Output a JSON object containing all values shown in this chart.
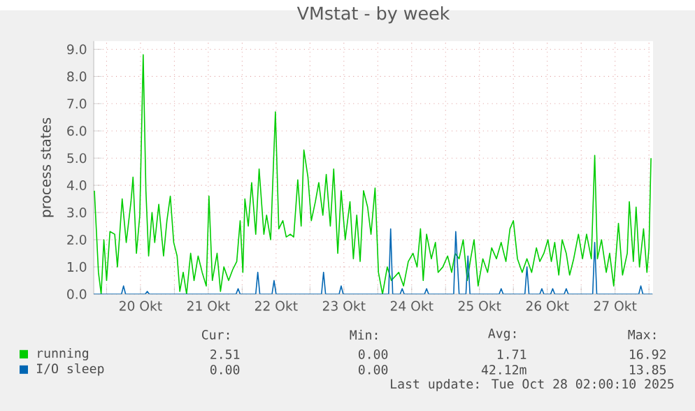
{
  "chart_data": {
    "type": "line",
    "title": "VMstat - by week",
    "ylabel": "process states",
    "xlim": [
      19.81,
      28.06
    ],
    "ylim": [
      0,
      9.3
    ],
    "xticks": [
      {
        "value": 20,
        "label": null
      },
      {
        "value": 20.5,
        "label": "20 Okt"
      },
      {
        "value": 21,
        "label": null
      },
      {
        "value": 21.5,
        "label": "21 Okt"
      },
      {
        "value": 22,
        "label": null
      },
      {
        "value": 22.5,
        "label": "22 Okt"
      },
      {
        "value": 23,
        "label": null
      },
      {
        "value": 23.5,
        "label": "23 Okt"
      },
      {
        "value": 24,
        "label": null
      },
      {
        "value": 24.5,
        "label": "24 Okt"
      },
      {
        "value": 25,
        "label": null
      },
      {
        "value": 25.5,
        "label": "25 Okt"
      },
      {
        "value": 26,
        "label": null
      },
      {
        "value": 26.5,
        "label": "26 Okt"
      },
      {
        "value": 27,
        "label": null
      },
      {
        "value": 27.5,
        "label": "27 Okt"
      },
      {
        "value": 28,
        "label": null
      }
    ],
    "yticks": [
      {
        "value": 0,
        "label": "0.0"
      },
      {
        "value": 1,
        "label": "1.0"
      },
      {
        "value": 2,
        "label": "2.0"
      },
      {
        "value": 3,
        "label": "3.0"
      },
      {
        "value": 4,
        "label": "4.0"
      },
      {
        "value": 5,
        "label": "5.0"
      },
      {
        "value": 6,
        "label": "6.0"
      },
      {
        "value": 7,
        "label": "7.0"
      },
      {
        "value": 8,
        "label": "8.0"
      },
      {
        "value": 9,
        "label": "9.0"
      }
    ],
    "grid": true,
    "legend": "bottom",
    "series": [
      {
        "name": "running",
        "color": "#00cc00",
        "x": [
          19.82,
          19.88,
          19.92,
          19.96,
          20.0,
          20.05,
          20.12,
          20.16,
          20.23,
          20.29,
          20.36,
          20.39,
          20.44,
          20.49,
          20.54,
          20.58,
          20.62,
          20.67,
          20.71,
          20.77,
          20.84,
          20.89,
          20.94,
          20.99,
          21.04,
          21.08,
          21.13,
          21.18,
          21.24,
          21.29,
          21.35,
          21.41,
          21.47,
          21.51,
          21.56,
          21.63,
          21.68,
          21.73,
          21.8,
          21.86,
          21.92,
          21.97,
          22.01,
          22.04,
          22.09,
          22.14,
          22.2,
          22.25,
          22.32,
          22.36,
          22.42,
          22.49,
          22.54,
          22.6,
          22.65,
          22.71,
          22.76,
          22.82,
          22.87,
          22.91,
          22.97,
          23.02,
          23.08,
          23.13,
          23.19,
          23.24,
          23.3,
          23.35,
          23.41,
          23.46,
          23.52,
          23.59,
          23.64,
          23.69,
          23.74,
          23.79,
          23.85,
          23.9,
          23.96,
          24.01,
          24.07,
          24.14,
          24.2,
          24.31,
          24.38,
          24.45,
          24.52,
          24.58,
          24.63,
          24.67,
          24.72,
          24.79,
          24.85,
          24.89,
          24.96,
          25.03,
          25.09,
          25.14,
          25.2,
          25.26,
          25.32,
          25.37,
          25.42,
          25.48,
          25.55,
          25.62,
          25.68,
          25.75,
          25.82,
          25.89,
          25.95,
          26.0,
          26.06,
          26.13,
          26.2,
          26.27,
          26.34,
          26.39,
          26.45,
          26.51,
          26.56,
          26.61,
          26.67,
          26.72,
          26.78,
          26.83,
          26.89,
          26.96,
          27.02,
          27.08,
          27.15,
          27.2,
          27.24,
          27.3,
          27.37,
          27.42,
          27.48,
          27.55,
          27.61,
          27.68,
          27.71,
          27.77,
          27.81,
          27.86,
          27.92,
          27.97,
          28.0,
          28.03
        ],
        "values": [
          3.8,
          0.8,
          0,
          2.0,
          0.5,
          2.3,
          2.2,
          1.0,
          3.5,
          1.9,
          3.4,
          4.3,
          1.5,
          2.9,
          8.8,
          3.8,
          1.4,
          3.0,
          1.9,
          3.3,
          1.4,
          2.7,
          3.6,
          1.9,
          1.4,
          0.1,
          0.8,
          0,
          1.5,
          0.5,
          1.4,
          0.8,
          0.3,
          3.6,
          0.5,
          1.5,
          0.1,
          1.0,
          0.5,
          0.9,
          1.2,
          2.7,
          0.8,
          3.5,
          2.5,
          4.1,
          2.2,
          4.6,
          2.2,
          2.9,
          2.0,
          6.7,
          2.4,
          2.7,
          2.1,
          2.2,
          2.1,
          4.2,
          2.5,
          5.3,
          4.3,
          2.7,
          3.4,
          4.1,
          2.9,
          4.4,
          2.5,
          4.6,
          1.5,
          3.8,
          2.0,
          3.4,
          1.3,
          2.9,
          1.2,
          3.8,
          3.2,
          2.2,
          3.9,
          0.8,
          0,
          1.0,
          0.5,
          0.8,
          0.3,
          1.2,
          1.5,
          1.0,
          2.4,
          0.5,
          2.2,
          1.3,
          1.9,
          0.8,
          1.0,
          1.4,
          0.8,
          1.5,
          1.3,
          2.0,
          0.5,
          1.3,
          2.0,
          0.3,
          1.3,
          0.8,
          1.7,
          1.3,
          1.9,
          1.2,
          2.4,
          2.7,
          1.3,
          0.8,
          1.3,
          0.8,
          1.7,
          1.2,
          1.5,
          2.0,
          1.2,
          1.9,
          0.7,
          2.0,
          1.5,
          0.7,
          1.3,
          2.2,
          1.3,
          2.2,
          1.3,
          5.1,
          1.3,
          2.0,
          0.8,
          1.5,
          0.3,
          2.6,
          0.7,
          1.5,
          3.4,
          1.2,
          3.2,
          1.0,
          2.4,
          0.8,
          1.7,
          5.0
        ]
      },
      {
        "name": "I/O sleep",
        "color": "#0066b3",
        "x": [
          19.81,
          20.22,
          20.25,
          20.28,
          20.57,
          20.6,
          20.63,
          21.91,
          21.94,
          21.97,
          22.2,
          22.23,
          22.26,
          22.44,
          22.47,
          22.5,
          23.17,
          23.2,
          23.23,
          23.43,
          23.46,
          23.49,
          24.16,
          24.19,
          24.22,
          24.33,
          24.36,
          24.39,
          24.69,
          24.72,
          24.75,
          25.12,
          25.15,
          25.2,
          25.3,
          25.33,
          25.36,
          25.79,
          25.82,
          25.85,
          26.17,
          26.2,
          26.23,
          26.39,
          26.42,
          26.45,
          26.55,
          26.58,
          26.61,
          26.75,
          26.78,
          26.81,
          27.17,
          27.2,
          27.23,
          27.85,
          27.88,
          27.91,
          28.05
        ],
        "values": [
          0,
          0,
          0.3,
          0,
          0,
          0.1,
          0,
          0,
          0.2,
          0,
          0,
          0.8,
          0,
          0,
          0.5,
          0,
          0,
          0.8,
          0,
          0,
          0.3,
          0,
          0,
          2.4,
          0,
          0,
          0.2,
          0,
          0,
          0.2,
          0,
          0,
          2.3,
          0,
          0,
          1.4,
          0,
          0,
          0.2,
          0,
          0,
          1.0,
          0,
          0,
          0.2,
          0,
          0,
          0.2,
          0,
          0,
          0.2,
          0,
          0,
          1.9,
          0,
          0,
          0.3,
          0,
          0
        ]
      }
    ],
    "annotations": [
      "Cur:",
      "Min:",
      "Avg:",
      "Max:",
      "2.51",
      "0.00",
      "1.71",
      "16.92",
      "0.00",
      "0.00",
      "42.12m",
      "13.85",
      "Last update: Tue Oct 28 02:00:10 2025"
    ]
  }
}
